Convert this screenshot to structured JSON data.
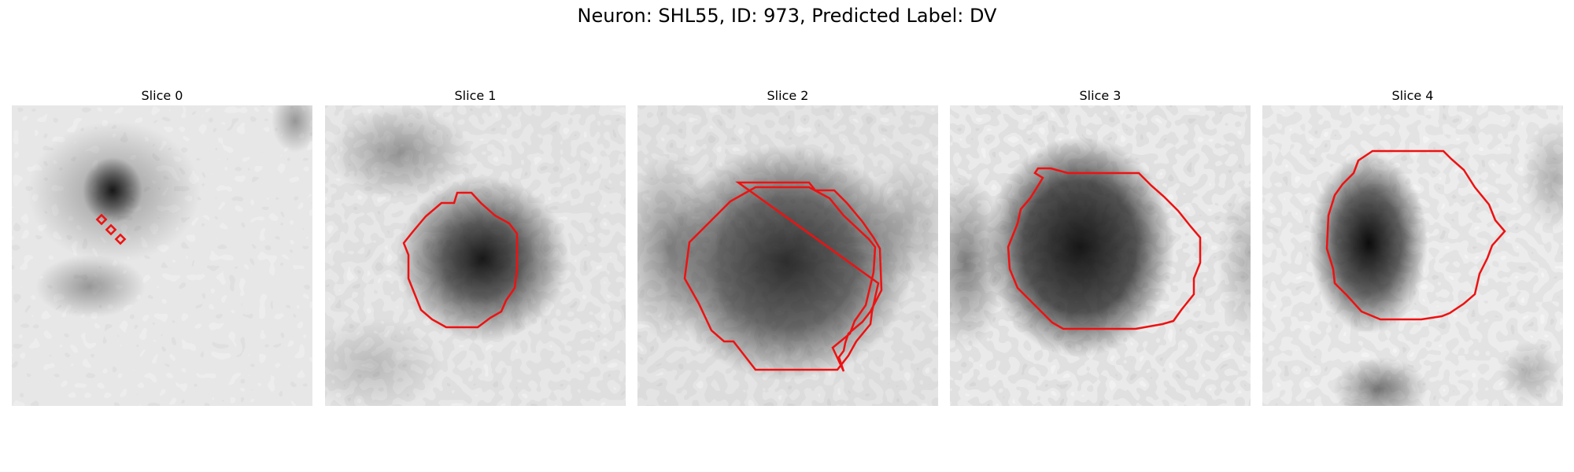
{
  "figure": {
    "title": "Neuron: SHL55, ID: 973, Predicted Label: DV",
    "contour_color": "#ee1111"
  },
  "panels": [
    {
      "title": "Slice 0"
    },
    {
      "title": "Slice 1"
    },
    {
      "title": "Slice 2"
    },
    {
      "title": "Slice 3"
    },
    {
      "title": "Slice 4"
    }
  ]
}
